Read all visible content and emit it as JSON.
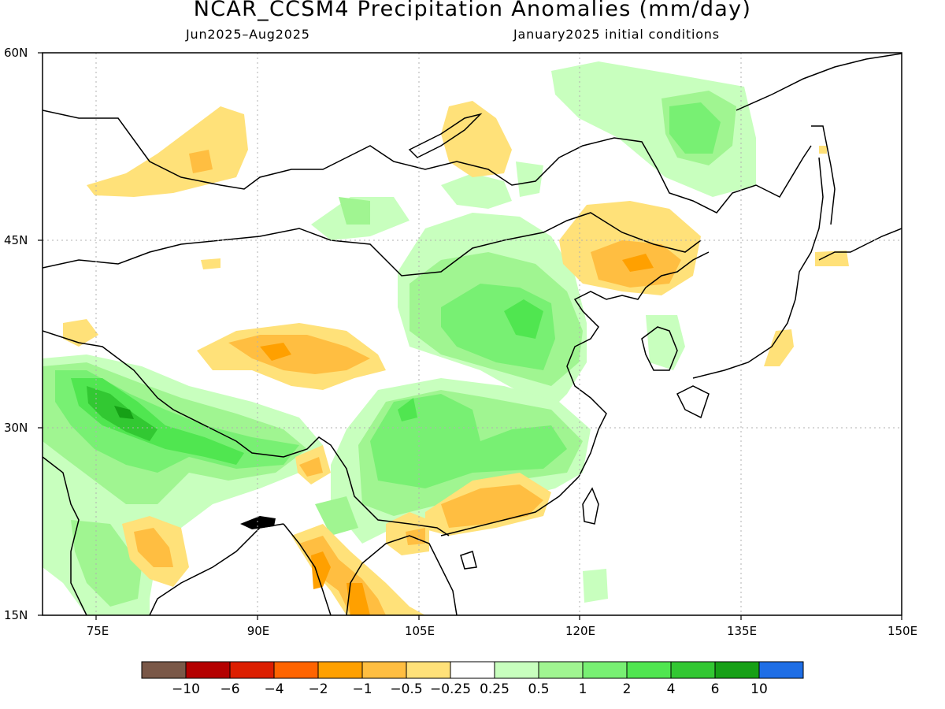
{
  "title": "NCAR_CCSM4 Precipitation Anomalies (mm/day)",
  "subtitle_left": "Jun2025–Aug2025",
  "subtitle_right": "January2025 initial conditions",
  "lat_labels": [
    "60N",
    "45N",
    "30N",
    "15N"
  ],
  "lon_labels": [
    "75E",
    "90E",
    "105E",
    "120E",
    "135E",
    "150E"
  ],
  "colorbar": {
    "colors": [
      "#7a5848",
      "#b40000",
      "#dc1e00",
      "#ff6400",
      "#ffa000",
      "#ffbe41",
      "#ffe179",
      "#ffffff",
      "#c8ffbe",
      "#a0f591",
      "#78f073",
      "#50e650",
      "#32c832",
      "#16a016",
      "#1e6ee6"
    ],
    "labels": [
      "−10",
      "−6",
      "−4",
      "−2",
      "−1",
      "−0.5",
      "−0.25",
      "0.25",
      "0.5",
      "1",
      "2",
      "4",
      "6",
      "10"
    ]
  }
}
